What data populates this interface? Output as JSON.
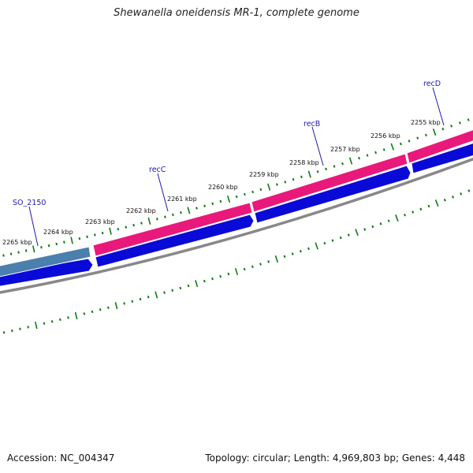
{
  "title": "Shewanella oneidensis MR-1, complete genome",
  "accession_text": "Accession: NC_004347",
  "summary_text": "Topology: circular; Length: 4,969,803 bp; Genes: 4,448",
  "colors": {
    "background": "#ffffff",
    "gene_forward_reference": "#4a7fae",
    "gene_forward_rec": "#e8197a",
    "cds_reverse": "#0a0ad8",
    "backbone": "#888888",
    "ticks": "#127a12",
    "label_text": "#1a1ab0"
  },
  "genes": [
    {
      "name": "SO_2150",
      "strand": "+",
      "color_key": "gene_forward_reference"
    },
    {
      "name": "recC",
      "strand": "+",
      "color_key": "gene_forward_rec"
    },
    {
      "name": "recB",
      "strand": "+",
      "color_key": "gene_forward_rec"
    },
    {
      "name": "recD",
      "strand": "+",
      "color_key": "gene_forward_rec"
    }
  ],
  "tick_labels": [
    "2265 kbp",
    "2264 kbp",
    "2263 kbp",
    "2262 kbp",
    "2261 kbp",
    "2260 kbp",
    "2259 kbp",
    "2258 kbp",
    "2257 kbp",
    "2256 kbp",
    "2255 kbp"
  ]
}
